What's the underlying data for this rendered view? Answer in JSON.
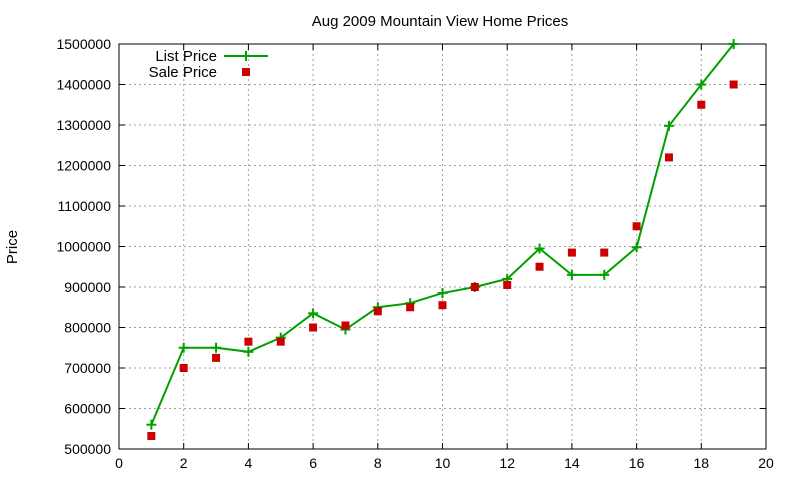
{
  "chart_data": {
    "type": "line",
    "title": "Aug 2009 Mountain View Home Prices",
    "xlabel": "",
    "ylabel": "Price",
    "xlim": [
      0,
      20
    ],
    "ylim": [
      500000,
      1500000
    ],
    "xticks": [
      0,
      2,
      4,
      6,
      8,
      10,
      12,
      14,
      16,
      18,
      20
    ],
    "yticks": [
      500000,
      600000,
      700000,
      800000,
      900000,
      1000000,
      1100000,
      1200000,
      1300000,
      1400000,
      1500000
    ],
    "grid": true,
    "legend_position": "top-left",
    "series": [
      {
        "name": "List Price",
        "kind": "line-points",
        "marker": "plus",
        "color": "#00a000",
        "x": [
          1,
          2,
          3,
          4,
          5,
          6,
          7,
          8,
          9,
          10,
          11,
          12,
          13,
          14,
          15,
          16,
          17,
          18,
          19
        ],
        "y": [
          560000,
          750000,
          750000,
          740000,
          775000,
          835000,
          795000,
          850000,
          860000,
          885000,
          900000,
          920000,
          995000,
          930000,
          930000,
          998000,
          1298000,
          1400000,
          1500000
        ]
      },
      {
        "name": "Sale Price",
        "kind": "points",
        "marker": "square",
        "color": "#cc0000",
        "x": [
          1,
          2,
          3,
          4,
          5,
          6,
          7,
          8,
          9,
          10,
          11,
          12,
          13,
          14,
          15,
          16,
          17,
          18,
          19
        ],
        "y": [
          532000,
          700000,
          725000,
          765000,
          765000,
          800000,
          805000,
          840000,
          850000,
          855000,
          900000,
          905000,
          950000,
          985000,
          985000,
          1050000,
          1220000,
          1350000,
          1400000
        ]
      }
    ]
  }
}
